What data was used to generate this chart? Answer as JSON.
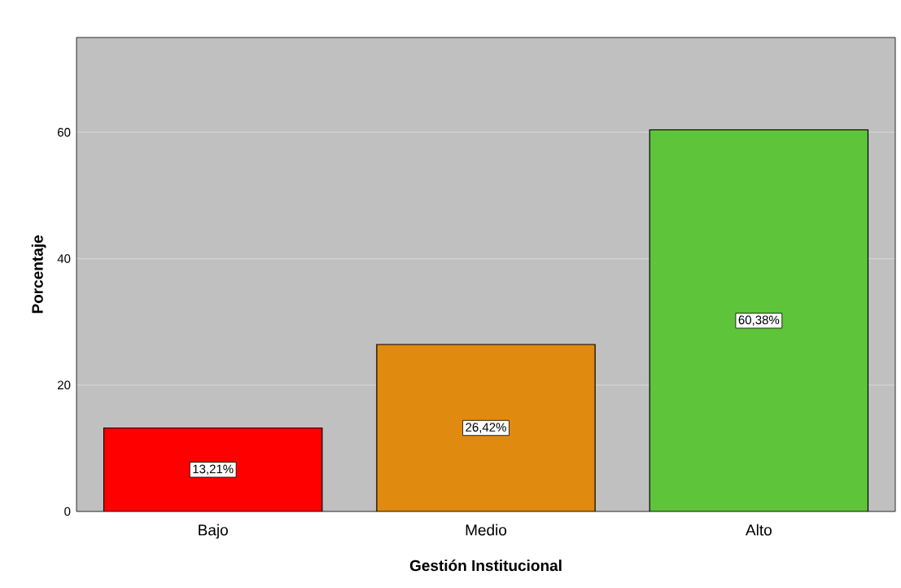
{
  "chart_data": {
    "type": "bar",
    "xlabel": "Gestión Institucional",
    "ylabel": "Porcentaje",
    "categories": [
      "Bajo",
      "Medio",
      "Alto"
    ],
    "values": [
      13.21,
      26.42,
      60.38
    ],
    "value_labels": [
      "13,21%",
      "26,42%",
      "60,38%"
    ],
    "colors": [
      "#ff0000",
      "#e08a10",
      "#5ec43a"
    ],
    "ylim": [
      0,
      75
    ],
    "yticks": [
      0,
      20,
      40,
      60
    ],
    "grid": "y"
  }
}
